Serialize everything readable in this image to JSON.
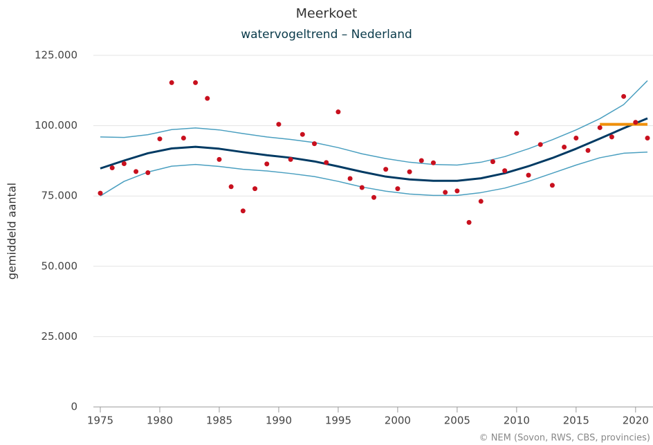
{
  "chart_data": {
    "type": "line",
    "title": "Meerkoet",
    "subtitle": "watervogeltrend – Nederland",
    "y_label": "gemiddeld aantal",
    "credit": "© NEM (Sovon, RWS, CBS, provincies)",
    "xlim": [
      1975,
      2021
    ],
    "xticks": [
      1975,
      1980,
      1985,
      1990,
      1995,
      2000,
      2005,
      2010,
      2015,
      2020
    ],
    "ylim": [
      0,
      125000
    ],
    "yticks": [
      0,
      {
        "value": 25000,
        "label": "25.000"
      },
      {
        "value": 50000,
        "label": "50.000"
      },
      {
        "value": 75000,
        "label": "75.000"
      },
      {
        "value": 100000,
        "label": "100.000"
      },
      {
        "value": 125000,
        "label": "125.000"
      }
    ],
    "grid": true,
    "series": [
      {
        "type": "line",
        "color": "#4a9fc0",
        "width": 1.5,
        "x": [
          1975,
          1977,
          1979,
          1981,
          1983,
          1985,
          1987,
          1989,
          1991,
          1993,
          1995,
          1997,
          1999,
          2001,
          2003,
          2005,
          2007,
          2009,
          2011,
          2013,
          2015,
          2017,
          2019,
          2021
        ],
        "values": [
          96000,
          95800,
          96800,
          98600,
          99200,
          98500,
          97200,
          96000,
          95100,
          94000,
          92200,
          90000,
          88300,
          87000,
          86200,
          86000,
          87000,
          89000,
          91800,
          95000,
          98500,
          102500,
          107500,
          116000
        ]
      },
      {
        "type": "line",
        "color": "#4a9fc0",
        "width": 1.5,
        "x": [
          1975,
          1977,
          1979,
          1981,
          1983,
          1985,
          1987,
          1989,
          1991,
          1993,
          1995,
          1997,
          1999,
          2001,
          2003,
          2005,
          2007,
          2009,
          2011,
          2013,
          2015,
          2017,
          2019,
          2021
        ],
        "values": [
          75000,
          80200,
          83500,
          85600,
          86200,
          85500,
          84500,
          83900,
          83000,
          81900,
          80200,
          78200,
          76700,
          75700,
          75200,
          75200,
          76200,
          77800,
          80200,
          83100,
          86000,
          88600,
          90200,
          90600
        ]
      },
      {
        "type": "line",
        "color": "#003a63",
        "width": 3,
        "x": [
          1975,
          1977,
          1979,
          1981,
          1983,
          1985,
          1987,
          1989,
          1991,
          1993,
          1995,
          1997,
          1999,
          2001,
          2003,
          2005,
          2007,
          2009,
          2011,
          2013,
          2015,
          2017,
          2019,
          2021
        ],
        "values": [
          84800,
          87600,
          90200,
          91900,
          92500,
          91800,
          90600,
          89500,
          88600,
          87300,
          85500,
          83600,
          81900,
          80900,
          80400,
          80400,
          81300,
          83100,
          85600,
          88500,
          91800,
          95400,
          99100,
          102600
        ]
      },
      {
        "type": "line",
        "color": "#f0900a",
        "width": 4,
        "x": [
          2017,
          2021
        ],
        "values": [
          100500,
          100500
        ]
      },
      {
        "type": "scatter",
        "color": "#c8101e",
        "x": [
          1975,
          1976,
          1977,
          1978,
          1979,
          1980,
          1981,
          1982,
          1983,
          1984,
          1985,
          1986,
          1987,
          1988,
          1989,
          1990,
          1991,
          1992,
          1993,
          1994,
          1995,
          1996,
          1997,
          1998,
          1999,
          2000,
          2001,
          2002,
          2003,
          2004,
          2005,
          2006,
          2007,
          2008,
          2009,
          2010,
          2011,
          2012,
          2013,
          2014,
          2015,
          2016,
          2017,
          2018,
          2019,
          2020,
          2021
        ],
        "values": [
          76000,
          85000,
          86500,
          83700,
          83300,
          95300,
          115300,
          95600,
          115300,
          109700,
          88000,
          78300,
          69700,
          77600,
          86400,
          100500,
          88000,
          96900,
          93600,
          86900,
          104900,
          81200,
          78000,
          74500,
          84500,
          77600,
          83600,
          87600,
          86800,
          76300,
          76800,
          65600,
          73100,
          87200,
          84000,
          97300,
          82400,
          93300,
          78800,
          92400,
          95600,
          91200,
          99300,
          96000,
          110400,
          101200,
          95600
        ]
      }
    ]
  }
}
